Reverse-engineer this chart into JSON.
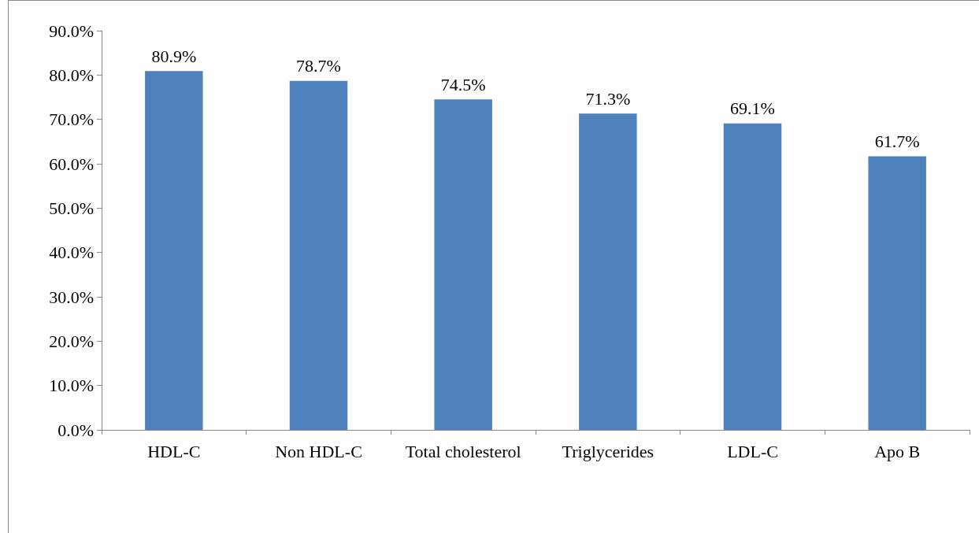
{
  "chart_data": {
    "type": "bar",
    "categories": [
      "HDL-C",
      "Non HDL-C",
      "Total cholesterol",
      "Triglycerides",
      "LDL-C",
      "Apo B"
    ],
    "values": [
      80.9,
      78.7,
      74.5,
      71.3,
      69.1,
      61.7
    ],
    "value_labels": [
      "80.9%",
      "78.7%",
      "74.5%",
      "71.3%",
      "69.1%",
      "61.7%"
    ],
    "color": "#4f81bd",
    "ylim": [
      0,
      90
    ],
    "yticks": [
      {
        "value": 0,
        "label": "0.0%"
      },
      {
        "value": 10,
        "label": "10.0%"
      },
      {
        "value": 20,
        "label": "20.0%"
      },
      {
        "value": 30,
        "label": "30.0%"
      },
      {
        "value": 40,
        "label": "40.0%"
      },
      {
        "value": 50,
        "label": "50.0%"
      },
      {
        "value": 60,
        "label": "60.0%"
      },
      {
        "value": 70,
        "label": "70.0%"
      },
      {
        "value": 80,
        "label": "80.0%"
      },
      {
        "value": 90,
        "label": "90.0%"
      }
    ],
    "grid": false
  }
}
